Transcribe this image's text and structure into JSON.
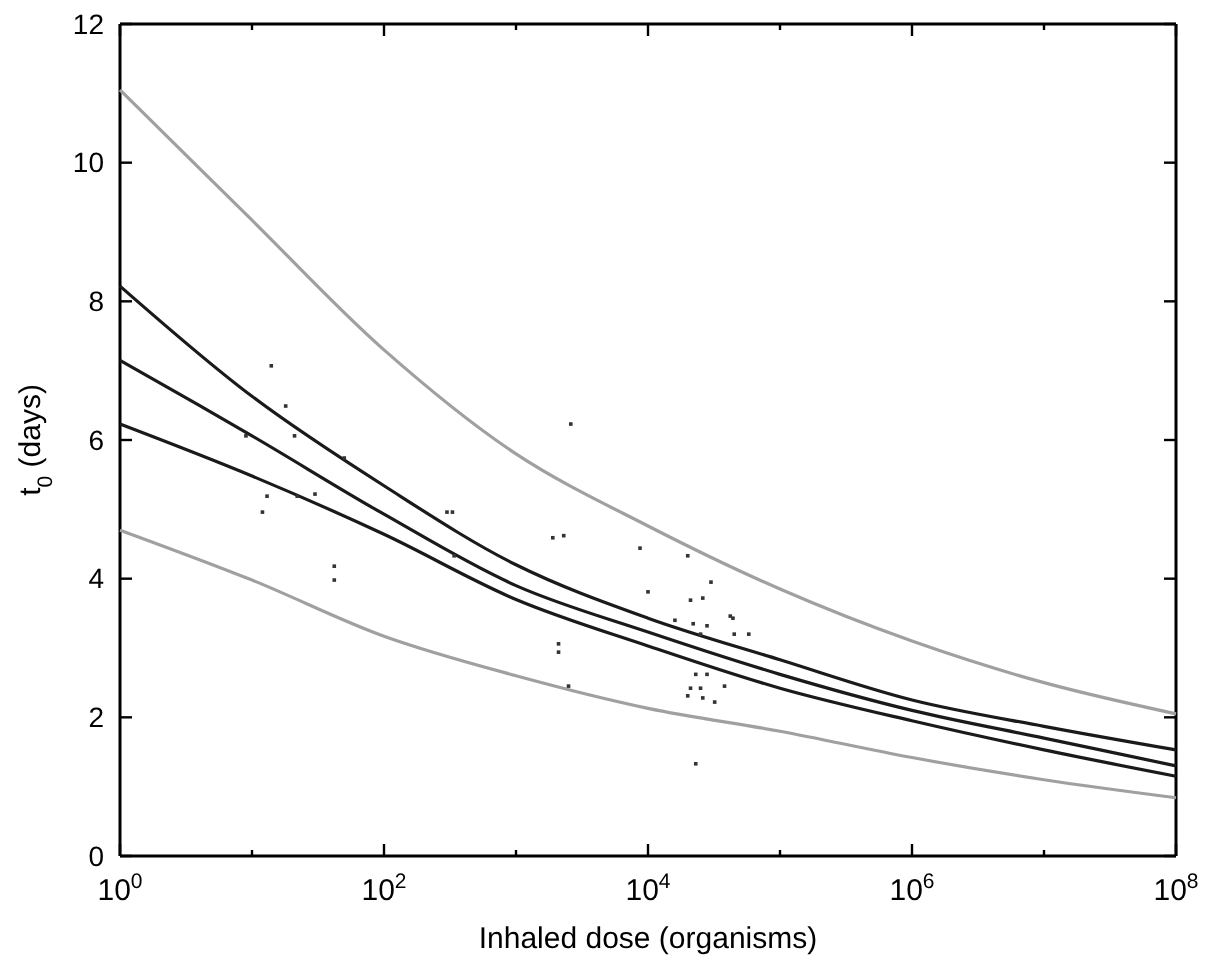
{
  "chart_data": {
    "type": "line",
    "xlabel": "Inhaled dose (organisms)",
    "ylabel": "t$_{0}$ (days)",
    "log": "x",
    "xlim": [
      1,
      100000000
    ],
    "ylim": [
      0,
      12
    ],
    "xticks": [
      {
        "value": 1,
        "label": "10$^{0}$"
      },
      {
        "value": 10,
        "label": null
      },
      {
        "value": 100,
        "label": "10$^{2}$"
      },
      {
        "value": 1000,
        "label": null
      },
      {
        "value": 10000,
        "label": "10$^{4}$"
      },
      {
        "value": 100000,
        "label": null
      },
      {
        "value": 1000000,
        "label": "10$^{6}$"
      },
      {
        "value": 10000000,
        "label": null
      },
      {
        "value": 100000000,
        "label": "10$^{8}$"
      }
    ],
    "yticks": [
      0,
      2,
      4,
      6,
      8,
      10,
      12
    ],
    "x": [
      1,
      10,
      100,
      1000,
      10000,
      100000,
      1000000,
      10000000,
      100000000
    ],
    "series": [
      {
        "color": "#a0a0a0",
        "values": [
          11.05,
          9.17,
          7.3,
          5.8,
          4.76,
          3.85,
          3.1,
          2.5,
          2.05
        ]
      },
      {
        "color": "#1a1a1a",
        "values": [
          8.22,
          6.63,
          5.34,
          4.2,
          3.43,
          2.83,
          2.25,
          1.87,
          1.53
        ]
      },
      {
        "color": "#1a1a1a",
        "values": [
          7.15,
          6.06,
          4.93,
          3.9,
          3.23,
          2.62,
          2.1,
          1.7,
          1.3
        ]
      },
      {
        "color": "#1a1a1a",
        "values": [
          6.23,
          5.48,
          4.64,
          3.7,
          3.03,
          2.42,
          1.95,
          1.53,
          1.15
        ]
      },
      {
        "color": "#a0a0a0",
        "values": [
          4.7,
          3.98,
          3.17,
          2.6,
          2.13,
          1.8,
          1.42,
          1.1,
          0.84
        ]
      },
      {
        "type": "scatter",
        "color": "#333333",
        "marker": "square",
        "x": [
          14,
          18,
          9,
          21,
          50,
          2600,
          13,
          12,
          22,
          30,
          42,
          42,
          300,
          330,
          340,
          1900,
          2300,
          2100,
          2100,
          2500,
          8700,
          10000,
          16000,
          20000,
          30000,
          21000,
          26000,
          22000,
          28000,
          25000,
          44000,
          45000,
          58000,
          23000,
          28000,
          21000,
          25000,
          20000,
          26000,
          32000,
          38000,
          23000,
          42000
        ],
        "values": [
          7.07,
          6.49,
          6.06,
          6.06,
          5.74,
          6.23,
          5.19,
          4.96,
          5.19,
          5.22,
          4.18,
          3.98,
          4.96,
          4.96,
          4.33,
          4.59,
          4.62,
          3.06,
          2.94,
          2.45,
          4.44,
          3.81,
          3.4,
          4.33,
          3.95,
          3.69,
          3.72,
          3.35,
          3.32,
          3.2,
          3.43,
          3.2,
          3.2,
          2.62,
          2.62,
          2.42,
          2.42,
          2.31,
          2.28,
          2.22,
          2.45,
          1.33,
          3.46
        ]
      }
    ]
  }
}
